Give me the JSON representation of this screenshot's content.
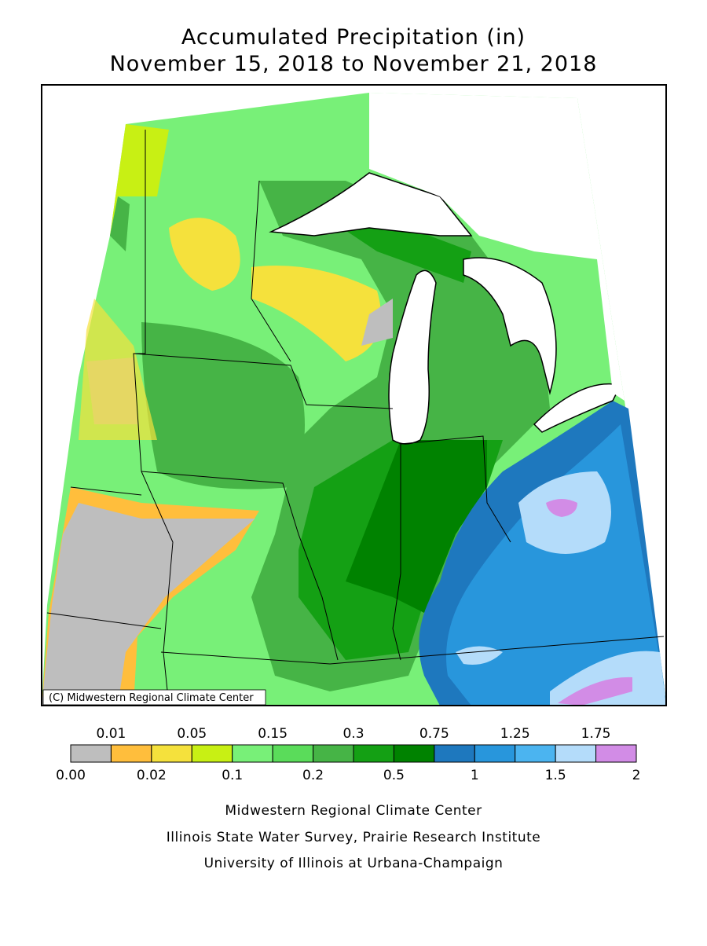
{
  "header": {
    "title": "Accumulated Precipitation (in)",
    "subtitle": "November 15, 2018 to November 21, 2018"
  },
  "map": {
    "credit": "(C) Midwestern Regional Climate Center"
  },
  "legend": {
    "labels": [
      "0.00",
      "0.01",
      "0.02",
      "0.05",
      "0.1",
      "0.15",
      "0.2",
      "0.3",
      "0.5",
      "0.75",
      "1",
      "1.25",
      "1.5",
      "1.75",
      "2"
    ],
    "colors": [
      "#bebebe",
      "#ffbe3c",
      "#f5e13c",
      "#c8f014",
      "#78f078",
      "#5adc5a",
      "#46b446",
      "#14a014",
      "#008200",
      "#1e78be",
      "#2896dc",
      "#4bb4f0",
      "#b4dcfa",
      "#d28ce6"
    ]
  },
  "footer": [
    "Midwestern Regional Climate Center",
    "Illinois State Water Survey, Prairie Research Institute",
    "University of Illinois at Urbana-Champaign"
  ]
}
